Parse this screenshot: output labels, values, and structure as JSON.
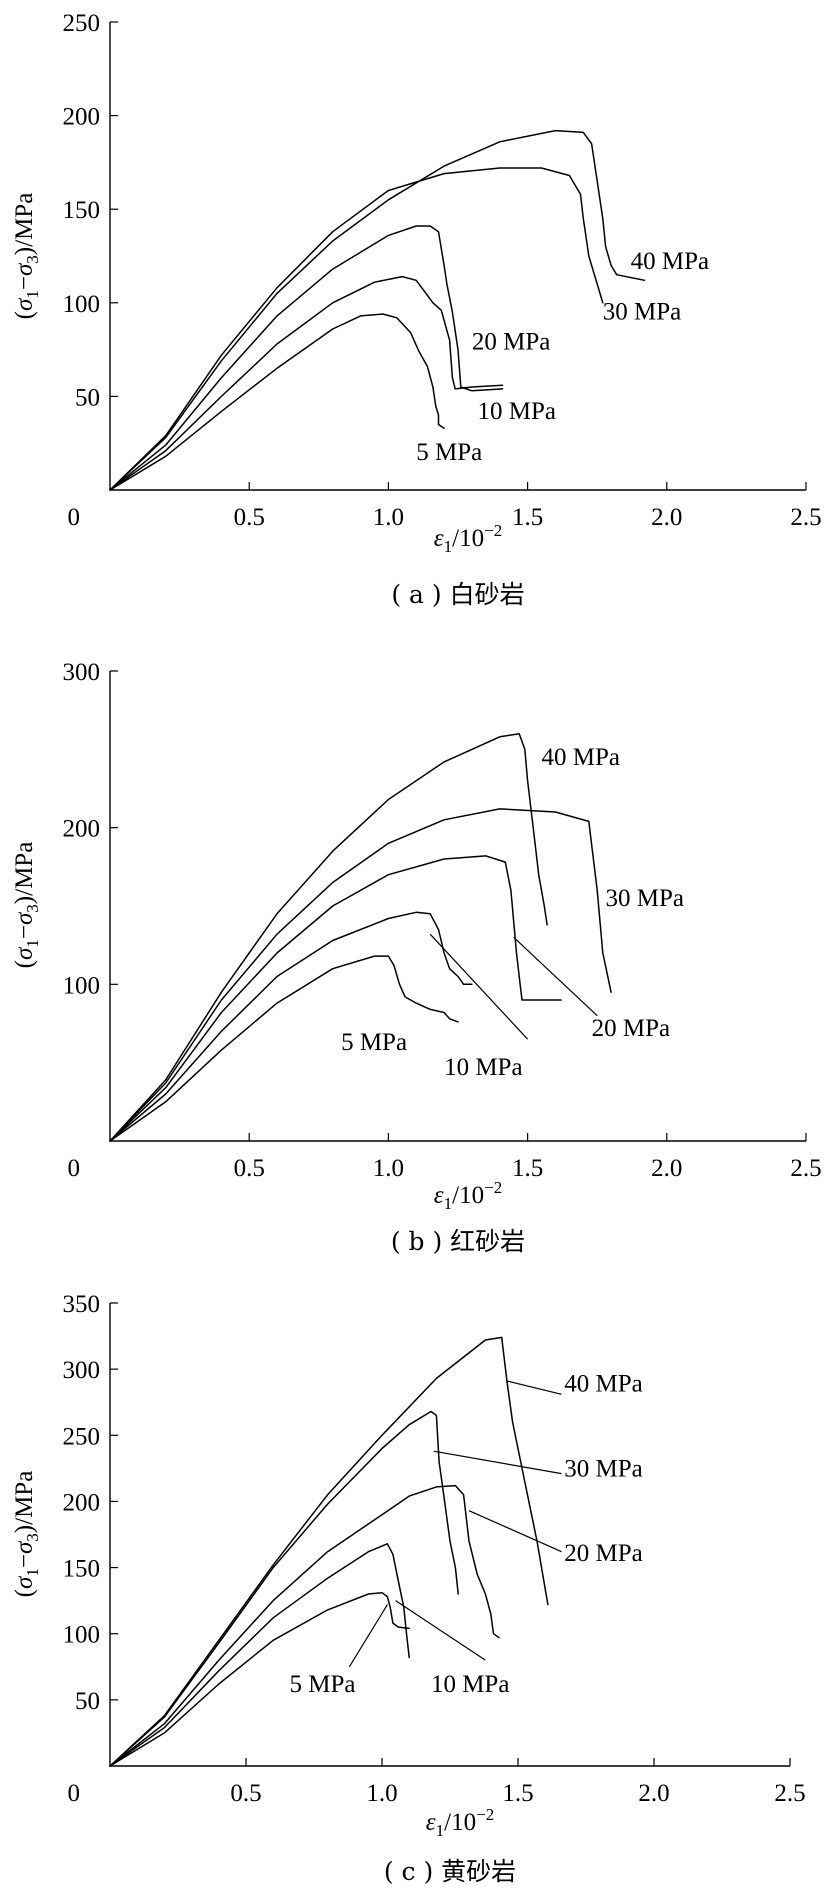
{
  "chart_data": [
    {
      "type": "line",
      "caption": "( a ) 白砂岩",
      "xlabel": {
        "sym": "ε",
        "sub": "1",
        "rest": "/10",
        "sup": "−2"
      },
      "ylabel": {
        "open": "(",
        "s1": "σ",
        "sub1": "1",
        "dash": "−",
        "s3": "σ",
        "sub3": "3",
        "close": ")/MPa"
      },
      "xlim": [
        0,
        2.5
      ],
      "ylim": [
        0,
        250
      ],
      "xticks": [
        0,
        0.5,
        1.0,
        1.5,
        2.0,
        2.5
      ],
      "xtick_labels": [
        "0",
        "0.5",
        "1.0",
        "1.5",
        "2.0",
        "2.5"
      ],
      "yticks": [
        50,
        100,
        150,
        200,
        250
      ],
      "ytick_labels": [
        "50",
        "100",
        "150",
        "200",
        "250"
      ],
      "series": [
        {
          "name": "5 MPa",
          "x": [
            0,
            0.2,
            0.4,
            0.6,
            0.8,
            0.9,
            0.98,
            1.03,
            1.08,
            1.11,
            1.14,
            1.16,
            1.17,
            1.18,
            1.18,
            1.2
          ],
          "y": [
            0,
            18,
            42,
            65,
            86,
            93,
            94,
            92,
            84,
            74,
            66,
            55,
            45,
            40,
            35,
            33
          ]
        },
        {
          "name": "10 MPa",
          "x": [
            0,
            0.2,
            0.4,
            0.6,
            0.8,
            0.95,
            1.05,
            1.1,
            1.13,
            1.16,
            1.19,
            1.22,
            1.23,
            1.24,
            1.3,
            1.41
          ],
          "y": [
            0,
            21,
            50,
            78,
            100,
            111,
            114,
            112,
            106,
            100,
            96,
            80,
            60,
            54,
            55,
            56
          ]
        },
        {
          "name": "20 MPa",
          "x": [
            0,
            0.2,
            0.4,
            0.6,
            0.8,
            1.0,
            1.1,
            1.15,
            1.18,
            1.2,
            1.21,
            1.23,
            1.25,
            1.26,
            1.3,
            1.41
          ],
          "y": [
            0,
            24,
            60,
            93,
            118,
            136,
            141,
            141,
            138,
            120,
            110,
            95,
            75,
            55,
            53,
            54
          ]
        },
        {
          "name": "30 MPa",
          "x": [
            0,
            0.2,
            0.4,
            0.6,
            0.8,
            1.0,
            1.2,
            1.4,
            1.55,
            1.65,
            1.69,
            1.7,
            1.71,
            1.72,
            1.74,
            1.76,
            1.77
          ],
          "y": [
            0,
            29,
            72,
            108,
            138,
            160,
            169,
            172,
            172,
            168,
            158,
            145,
            135,
            125,
            115,
            105,
            100
          ]
        },
        {
          "name": "40 MPa",
          "x": [
            0,
            0.2,
            0.4,
            0.6,
            0.8,
            1.0,
            1.2,
            1.4,
            1.6,
            1.7,
            1.73,
            1.75,
            1.77,
            1.78,
            1.8,
            1.82,
            1.92
          ],
          "y": [
            0,
            28,
            69,
            105,
            133,
            155,
            173,
            186,
            192,
            191,
            185,
            165,
            145,
            130,
            120,
            115,
            112
          ]
        }
      ],
      "annotations": [
        {
          "text": "40 MPa",
          "x": 1.87,
          "y": 118
        },
        {
          "text": "30 MPa",
          "x": 1.77,
          "y": 91
        },
        {
          "text": "20 MPa",
          "x": 1.3,
          "y": 75
        },
        {
          "text": "10 MPa",
          "x": 1.32,
          "y": 38
        },
        {
          "text": "5 MPa",
          "x": 1.1,
          "y": 16
        }
      ],
      "leaders": []
    },
    {
      "type": "line",
      "caption": "( b ) 红砂岩",
      "xlabel": {
        "sym": "ε",
        "sub": "1",
        "rest": "/10",
        "sup": "−2"
      },
      "ylabel": {
        "open": "(",
        "s1": "σ",
        "sub1": "1",
        "dash": "−",
        "s3": "σ",
        "sub3": "3",
        "close": ")/MPa"
      },
      "xlim": [
        0,
        2.5
      ],
      "ylim": [
        0,
        300
      ],
      "xticks": [
        0,
        0.5,
        1.0,
        1.5,
        2.0,
        2.5
      ],
      "xtick_labels": [
        "0",
        "0.5",
        "1.0",
        "1.5",
        "2.0",
        "2.5"
      ],
      "yticks": [
        100,
        200,
        300
      ],
      "ytick_labels": [
        "100",
        "200",
        "300"
      ],
      "series": [
        {
          "name": "5 MPa",
          "x": [
            0,
            0.2,
            0.4,
            0.6,
            0.8,
            0.95,
            1.0,
            1.02,
            1.04,
            1.06,
            1.1,
            1.15,
            1.2,
            1.22,
            1.25
          ],
          "y": [
            0,
            25,
            58,
            88,
            110,
            118,
            118,
            112,
            100,
            92,
            88,
            84,
            82,
            78,
            76
          ]
        },
        {
          "name": "10 MPa",
          "x": [
            0,
            0.2,
            0.4,
            0.6,
            0.8,
            1.0,
            1.1,
            1.15,
            1.18,
            1.2,
            1.22,
            1.25,
            1.27,
            1.3
          ],
          "y": [
            0,
            30,
            70,
            105,
            128,
            142,
            146,
            145,
            135,
            120,
            110,
            105,
            100,
            100
          ]
        },
        {
          "name": "20 MPa",
          "x": [
            0,
            0.2,
            0.4,
            0.6,
            0.8,
            1.0,
            1.2,
            1.35,
            1.42,
            1.44,
            1.45,
            1.46,
            1.47,
            1.48,
            1.5,
            1.62
          ],
          "y": [
            0,
            34,
            82,
            120,
            150,
            170,
            180,
            182,
            178,
            160,
            140,
            120,
            105,
            90,
            90,
            90
          ]
        },
        {
          "name": "30 MPa",
          "x": [
            0,
            0.2,
            0.4,
            0.6,
            0.8,
            1.0,
            1.2,
            1.4,
            1.6,
            1.72,
            1.75,
            1.77,
            1.8
          ],
          "y": [
            0,
            37,
            90,
            132,
            165,
            190,
            205,
            212,
            210,
            204,
            160,
            120,
            95
          ]
        },
        {
          "name": "40 MPa",
          "x": [
            0,
            0.2,
            0.4,
            0.6,
            0.8,
            1.0,
            1.2,
            1.4,
            1.47,
            1.49,
            1.5,
            1.52,
            1.54,
            1.56,
            1.57
          ],
          "y": [
            0,
            39,
            95,
            145,
            185,
            218,
            242,
            258,
            260,
            250,
            230,
            200,
            170,
            150,
            138
          ]
        }
      ],
      "annotations": [
        {
          "text": "40 MPa",
          "x": 1.55,
          "y": 240
        },
        {
          "text": "30 MPa",
          "x": 1.78,
          "y": 150
        },
        {
          "text": "20 MPa",
          "x": 1.73,
          "y": 67
        },
        {
          "text": "10 MPa",
          "x": 1.2,
          "y": 42
        },
        {
          "text": "5 MPa",
          "x": 0.83,
          "y": 58
        }
      ],
      "leaders": [
        {
          "x1": 1.15,
          "y1": 132,
          "x2": 1.5,
          "y2": 65
        },
        {
          "x1": 1.45,
          "y1": 130,
          "x2": 1.75,
          "y2": 80
        }
      ]
    },
    {
      "type": "line",
      "caption": "( c ) 黄砂岩",
      "xlabel": {
        "sym": "ε",
        "sub": "1",
        "rest": "/10",
        "sup": "−2"
      },
      "ylabel": {
        "open": "(",
        "s1": "σ",
        "sub1": "1",
        "dash": "−",
        "s3": "σ",
        "sub3": "3",
        "close": ")/MPa"
      },
      "xlim": [
        0,
        2.5
      ],
      "ylim": [
        0,
        350
      ],
      "xticks": [
        0,
        0.5,
        1.0,
        1.5,
        2.0,
        2.5
      ],
      "xtick_labels": [
        "0",
        "0.5",
        "1.0",
        "1.5",
        "2.0",
        "2.5"
      ],
      "yticks": [
        50,
        100,
        150,
        200,
        250,
        300,
        350
      ],
      "ytick_labels": [
        "50",
        "100",
        "150",
        "200",
        "250",
        "300",
        "350"
      ],
      "series": [
        {
          "name": "5 MPa",
          "x": [
            0,
            0.2,
            0.4,
            0.6,
            0.8,
            0.95,
            1.0,
            1.02,
            1.03,
            1.04,
            1.06,
            1.1
          ],
          "y": [
            0,
            25,
            62,
            95,
            118,
            130,
            131,
            128,
            120,
            108,
            105,
            104
          ]
        },
        {
          "name": "10 MPa",
          "x": [
            0,
            0.2,
            0.4,
            0.6,
            0.8,
            0.95,
            1.02,
            1.04,
            1.06,
            1.08,
            1.09,
            1.1
          ],
          "y": [
            0,
            29,
            72,
            112,
            142,
            162,
            168,
            160,
            140,
            120,
            100,
            82
          ]
        },
        {
          "name": "20 MPa",
          "x": [
            0,
            0.2,
            0.4,
            0.6,
            0.8,
            1.0,
            1.1,
            1.2,
            1.27,
            1.3,
            1.32,
            1.35,
            1.38,
            1.4,
            1.41,
            1.43
          ],
          "y": [
            0,
            32,
            80,
            125,
            162,
            190,
            204,
            211,
            212,
            205,
            170,
            145,
            130,
            115,
            100,
            97
          ]
        },
        {
          "name": "30 MPa",
          "x": [
            0,
            0.2,
            0.4,
            0.6,
            0.8,
            1.0,
            1.1,
            1.18,
            1.2,
            1.21,
            1.23,
            1.25,
            1.27,
            1.28
          ],
          "y": [
            0,
            37,
            93,
            150,
            198,
            240,
            258,
            268,
            265,
            230,
            200,
            170,
            150,
            130
          ]
        },
        {
          "name": "40 MPa",
          "x": [
            0,
            0.2,
            0.4,
            0.6,
            0.8,
            1.0,
            1.2,
            1.38,
            1.44,
            1.46,
            1.48,
            1.52,
            1.57,
            1.61
          ],
          "y": [
            0,
            38,
            95,
            152,
            205,
            250,
            293,
            322,
            324,
            290,
            260,
            220,
            170,
            122
          ]
        }
      ],
      "annotations": [
        {
          "text": "40 MPa",
          "x": 1.67,
          "y": 283
        },
        {
          "text": "30 MPa",
          "x": 1.67,
          "y": 219
        },
        {
          "text": "20 MPa",
          "x": 1.67,
          "y": 155
        },
        {
          "text": "10 MPa",
          "x": 1.18,
          "y": 56
        },
        {
          "text": "5 MPa",
          "x": 0.66,
          "y": 56
        }
      ],
      "leaders": [
        {
          "x1": 1.46,
          "y1": 291,
          "x2": 1.66,
          "y2": 281
        },
        {
          "x1": 1.19,
          "y1": 238,
          "x2": 1.66,
          "y2": 221
        },
        {
          "x1": 1.32,
          "y1": 193,
          "x2": 1.66,
          "y2": 162
        },
        {
          "x1": 1.05,
          "y1": 125,
          "x2": 1.38,
          "y2": 80
        },
        {
          "x1": 1.02,
          "y1": 122,
          "x2": 0.88,
          "y2": 75
        }
      ]
    }
  ]
}
